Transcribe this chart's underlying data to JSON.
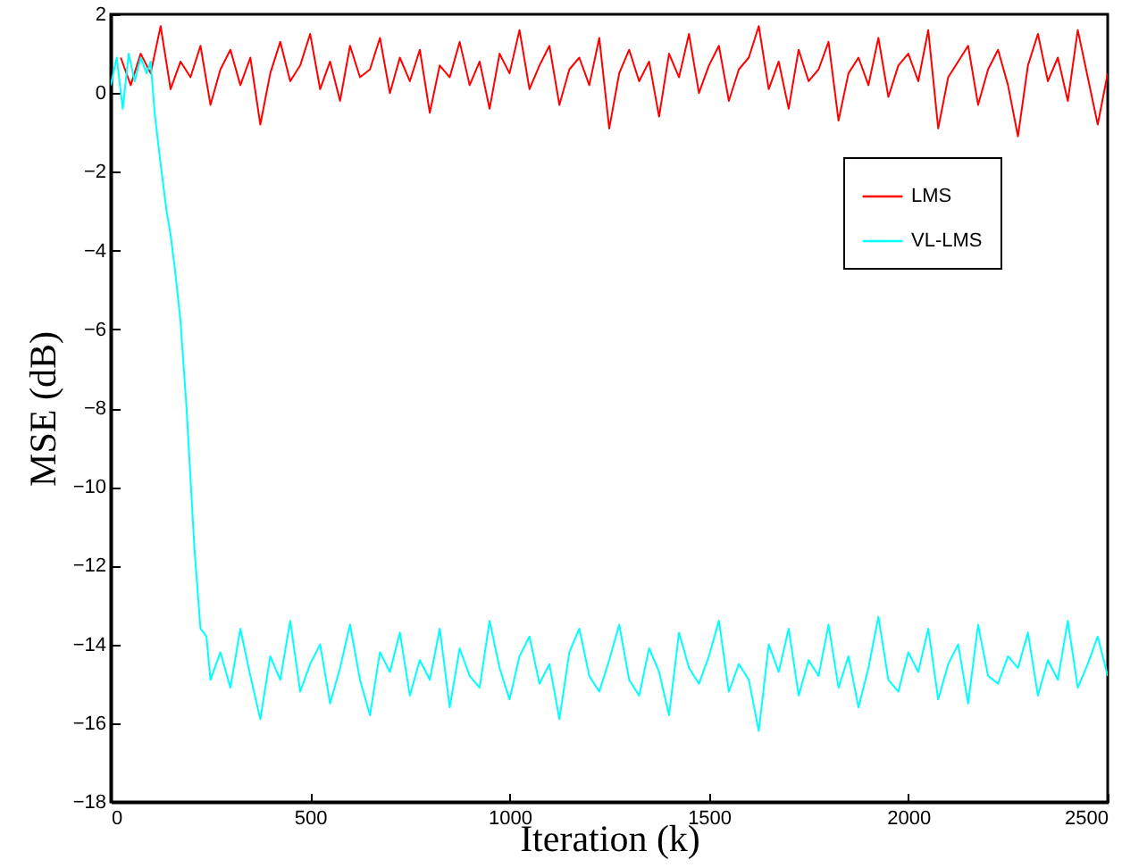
{
  "chart_data": {
    "type": "line",
    "xlabel": "Iteration (k)",
    "ylabel": "MSE (dB)",
    "xlim": [
      0,
      2500
    ],
    "xticks": [
      0,
      500,
      1000,
      1500,
      2000,
      2500
    ],
    "ylim": [
      -18,
      2
    ],
    "yticks": [
      -18,
      -16,
      -14,
      -12,
      -10,
      -8,
      -6,
      -4,
      -2,
      0,
      2
    ],
    "grid": false,
    "legend": "top right",
    "marker": "none",
    "line_style": "solid",
    "series": [
      {
        "name": "LMS",
        "color": "#ff0000",
        "x": [
          25,
          50,
          75,
          100,
          125,
          150,
          175,
          200,
          225,
          250,
          275,
          300,
          325,
          350,
          375,
          400,
          425,
          450,
          475,
          500,
          525,
          550,
          575,
          600,
          625,
          650,
          675,
          700,
          725,
          750,
          775,
          800,
          825,
          850,
          875,
          900,
          925,
          950,
          975,
          1000,
          1025,
          1050,
          1075,
          1100,
          1125,
          1150,
          1175,
          1200,
          1225,
          1250,
          1275,
          1300,
          1325,
          1350,
          1375,
          1400,
          1425,
          1450,
          1475,
          1500,
          1525,
          1550,
          1575,
          1600,
          1625,
          1650,
          1675,
          1700,
          1725,
          1750,
          1775,
          1800,
          1825,
          1850,
          1875,
          1900,
          1925,
          1950,
          1975,
          2000,
          2025,
          2050,
          2075,
          2100,
          2125,
          2150,
          2175,
          2200,
          2225,
          2250,
          2275,
          2300,
          2325,
          2350,
          2375,
          2400,
          2425,
          2450,
          2475,
          2500
        ],
        "values": [
          0.9,
          0.2,
          1.0,
          0.5,
          1.7,
          0.1,
          0.8,
          0.4,
          1.2,
          -0.3,
          0.6,
          1.1,
          0.2,
          0.9,
          -0.8,
          0.5,
          1.3,
          0.3,
          0.7,
          1.5,
          0.1,
          0.8,
          -0.2,
          1.2,
          0.4,
          0.6,
          1.4,
          0.0,
          0.9,
          0.3,
          1.1,
          -0.5,
          0.7,
          0.4,
          1.3,
          0.2,
          0.8,
          -0.4,
          1.0,
          0.5,
          1.6,
          0.1,
          0.7,
          1.2,
          -0.3,
          0.6,
          0.9,
          0.2,
          1.4,
          -0.9,
          0.5,
          1.1,
          0.3,
          0.8,
          -0.6,
          1.0,
          0.4,
          1.5,
          0.0,
          0.7,
          1.2,
          -0.2,
          0.6,
          0.9,
          1.7,
          0.1,
          0.8,
          -0.4,
          1.1,
          0.3,
          0.6,
          1.3,
          -0.7,
          0.5,
          0.9,
          0.2,
          1.4,
          -0.1,
          0.7,
          1.0,
          0.3,
          1.6,
          -0.9,
          0.4,
          0.8,
          1.2,
          -0.3,
          0.6,
          1.1,
          0.2,
          -1.1,
          0.7,
          1.5,
          0.3,
          0.9,
          -0.2,
          1.6,
          0.4,
          -0.8,
          0.5
        ]
      },
      {
        "name": "VL-LMS",
        "color": "#00ffff",
        "x": [
          0,
          15,
          30,
          45,
          60,
          75,
          90,
          100,
          110,
          125,
          140,
          150,
          160,
          175,
          190,
          200,
          210,
          225,
          240,
          250,
          275,
          300,
          325,
          350,
          375,
          400,
          425,
          450,
          475,
          500,
          525,
          550,
          575,
          600,
          625,
          650,
          675,
          700,
          725,
          750,
          775,
          800,
          825,
          850,
          875,
          900,
          925,
          950,
          975,
          1000,
          1025,
          1050,
          1075,
          1100,
          1125,
          1150,
          1175,
          1200,
          1225,
          1250,
          1275,
          1300,
          1325,
          1350,
          1375,
          1400,
          1425,
          1450,
          1475,
          1500,
          1525,
          1550,
          1575,
          1600,
          1625,
          1650,
          1675,
          1700,
          1725,
          1750,
          1775,
          1800,
          1825,
          1850,
          1875,
          1900,
          1925,
          1950,
          1975,
          2000,
          2025,
          2050,
          2075,
          2100,
          2125,
          2150,
          2175,
          2200,
          2225,
          2250,
          2275,
          2300,
          2325,
          2350,
          2375,
          2400,
          2425,
          2450,
          2475,
          2500
        ],
        "values": [
          0.2,
          0.9,
          -0.4,
          1.0,
          0.3,
          0.9,
          0.5,
          0.8,
          -0.5,
          -1.8,
          -3.0,
          -3.6,
          -4.4,
          -5.8,
          -8.0,
          -9.8,
          -11.6,
          -13.6,
          -13.8,
          -14.9,
          -14.2,
          -15.1,
          -13.6,
          -14.8,
          -15.9,
          -14.3,
          -14.9,
          -13.4,
          -15.2,
          -14.5,
          -14.0,
          -15.5,
          -14.6,
          -13.5,
          -14.9,
          -15.8,
          -14.2,
          -14.7,
          -13.7,
          -15.3,
          -14.4,
          -14.9,
          -13.6,
          -15.6,
          -14.1,
          -14.8,
          -15.1,
          -13.4,
          -14.6,
          -15.4,
          -14.3,
          -13.8,
          -15.0,
          -14.5,
          -15.9,
          -14.2,
          -13.6,
          -14.8,
          -15.2,
          -14.4,
          -13.5,
          -14.9,
          -15.3,
          -14.1,
          -14.7,
          -15.8,
          -13.7,
          -14.6,
          -15.0,
          -14.3,
          -13.4,
          -15.2,
          -14.5,
          -14.9,
          -16.2,
          -14.0,
          -14.7,
          -13.6,
          -15.3,
          -14.4,
          -14.8,
          -13.5,
          -15.1,
          -14.3,
          -15.6,
          -14.6,
          -13.3,
          -14.9,
          -15.2,
          -14.2,
          -14.7,
          -13.6,
          -15.4,
          -14.5,
          -14.0,
          -15.5,
          -13.5,
          -14.8,
          -15.0,
          -14.3,
          -14.6,
          -13.7,
          -15.3,
          -14.4,
          -14.9,
          -13.4,
          -15.1,
          -14.5,
          -13.8,
          -14.8
        ]
      }
    ]
  }
}
